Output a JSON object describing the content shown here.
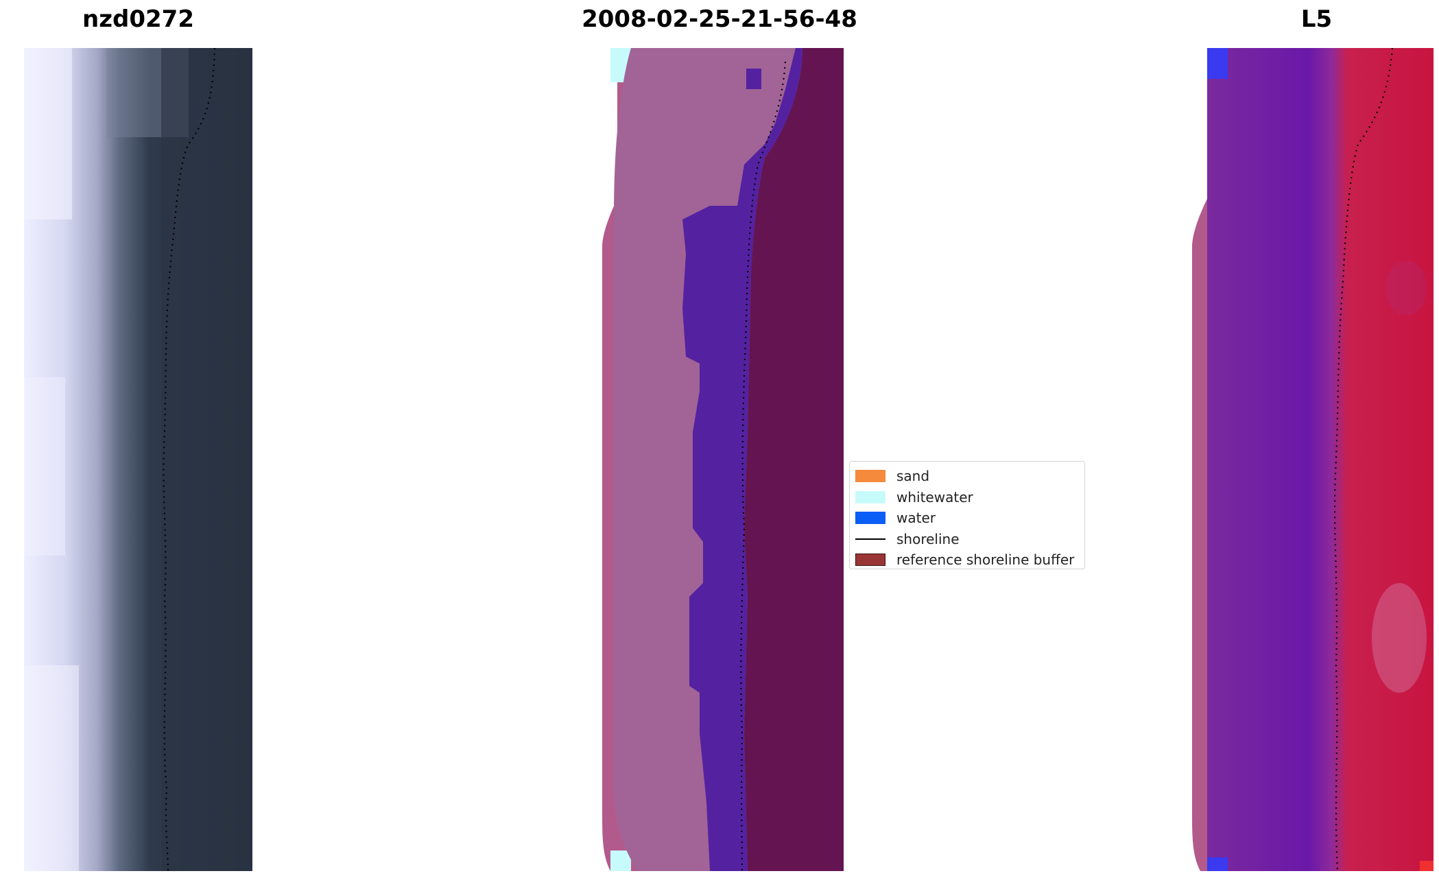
{
  "panels": [
    {
      "title": "nzd0272"
    },
    {
      "title": "2008-02-25-21-56-48"
    },
    {
      "title": "L5"
    }
  ],
  "legend": {
    "items": [
      {
        "label": "sand",
        "color": "#f58a3c",
        "kind": "patch"
      },
      {
        "label": "whitewater",
        "color": "#c7fbfb",
        "kind": "patch"
      },
      {
        "label": "water",
        "color": "#0a5ef5",
        "kind": "patch"
      },
      {
        "label": "shoreline",
        "color": "#000000",
        "kind": "line"
      },
      {
        "label": "reference shoreline buffer",
        "color": "#9a3535",
        "kind": "patch"
      }
    ]
  }
}
